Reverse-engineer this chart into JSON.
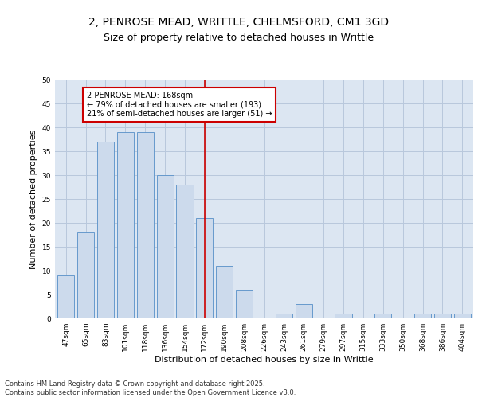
{
  "title_line1": "2, PENROSE MEAD, WRITTLE, CHELMSFORD, CM1 3GD",
  "title_line2": "Size of property relative to detached houses in Writtle",
  "xlabel": "Distribution of detached houses by size in Writtle",
  "ylabel": "Number of detached properties",
  "categories": [
    "47sqm",
    "65sqm",
    "83sqm",
    "101sqm",
    "118sqm",
    "136sqm",
    "154sqm",
    "172sqm",
    "190sqm",
    "208sqm",
    "226sqm",
    "243sqm",
    "261sqm",
    "279sqm",
    "297sqm",
    "315sqm",
    "333sqm",
    "350sqm",
    "368sqm",
    "386sqm",
    "404sqm"
  ],
  "values": [
    9,
    18,
    37,
    39,
    39,
    30,
    28,
    21,
    11,
    6,
    0,
    1,
    3,
    0,
    1,
    0,
    1,
    0,
    1,
    1,
    1
  ],
  "bar_color": "#ccdaec",
  "bar_edge_color": "#6699cc",
  "vline_x": 7,
  "vline_color": "#cc0000",
  "annotation_text": "2 PENROSE MEAD: 168sqm\n← 79% of detached houses are smaller (193)\n21% of semi-detached houses are larger (51) →",
  "annotation_box_color": "white",
  "annotation_box_edge_color": "#cc0000",
  "ylim": [
    0,
    50
  ],
  "yticks": [
    0,
    5,
    10,
    15,
    20,
    25,
    30,
    35,
    40,
    45,
    50
  ],
  "grid_color": "#b8c8dc",
  "background_color": "#dce6f2",
  "footer_text": "Contains HM Land Registry data © Crown copyright and database right 2025.\nContains public sector information licensed under the Open Government Licence v3.0.",
  "title_fontsize": 10,
  "subtitle_fontsize": 9,
  "tick_fontsize": 6.5,
  "label_fontsize": 8,
  "footer_fontsize": 6
}
